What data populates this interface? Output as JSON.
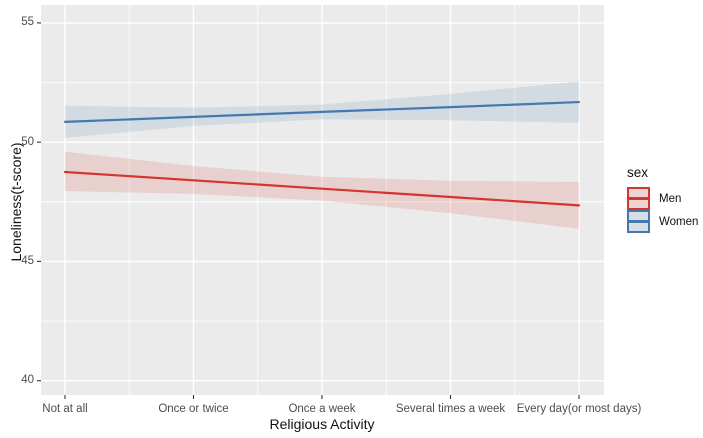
{
  "chart_data": {
    "type": "line",
    "title": "",
    "xlabel": "Religious Activity",
    "ylabel": "Loneliness(t-score)",
    "categories": [
      "Not at all",
      "Once or twice",
      "Once a week",
      "Several times a week",
      "Every day(or most days)"
    ],
    "series": [
      {
        "name": "Men",
        "color": "#d6352f",
        "values": [
          48.75,
          48.4,
          48.05,
          47.7,
          47.35
        ],
        "ci_upper": [
          49.6,
          49.0,
          48.55,
          48.38,
          48.33
        ],
        "ci_lower": [
          47.95,
          47.83,
          47.55,
          47.02,
          46.37
        ]
      },
      {
        "name": "Women",
        "color": "#4478b0",
        "values": [
          50.85,
          51.06,
          51.27,
          51.47,
          51.68
        ],
        "ci_upper": [
          51.53,
          51.44,
          51.58,
          52.02,
          52.55
        ],
        "ci_lower": [
          50.18,
          50.68,
          50.96,
          50.92,
          50.81
        ]
      }
    ],
    "ylim": [
      39.4,
      55.75
    ],
    "y_major_ticks": [
      40,
      45,
      50,
      55
    ],
    "y_minor_ticks": [
      42.5,
      47.5,
      52.5
    ],
    "grid": "on",
    "legend_position": "right",
    "band_alpha": 0.15,
    "panel_bg": "#ebebeb",
    "grid_color": "#ffffff",
    "tick_color": "#333333",
    "tick_label_color": "#4d4d4d"
  },
  "legend": {
    "title": "sex"
  }
}
